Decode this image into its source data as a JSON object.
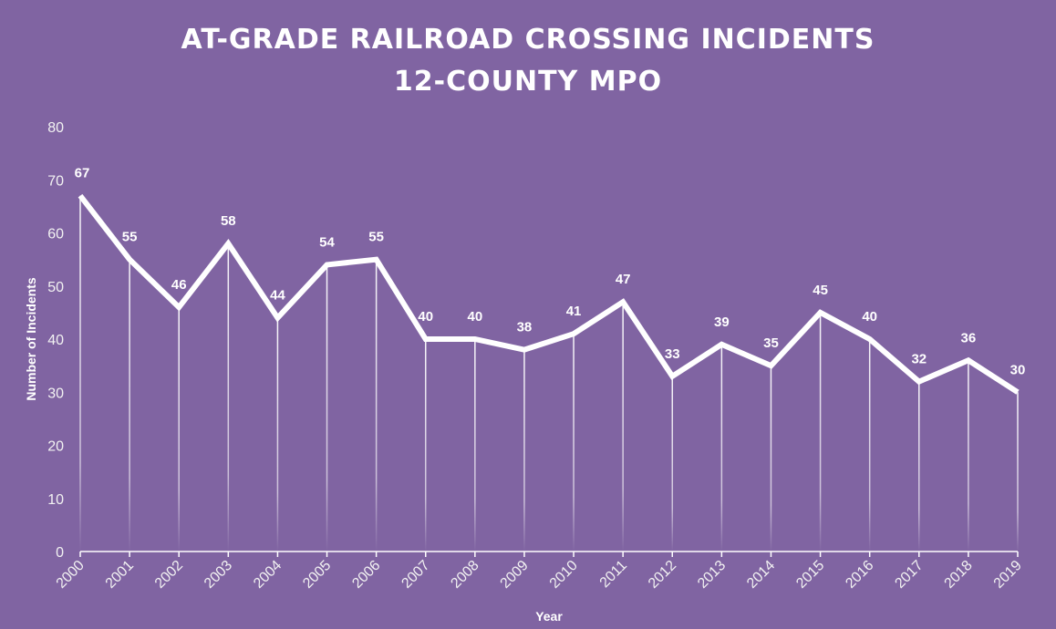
{
  "chart_data": {
    "type": "line",
    "title": [
      "AT-GRADE RAILROAD CROSSING INCIDENTS",
      "12-COUNTY MPO"
    ],
    "xlabel": "Year",
    "ylabel": "Number of Incidents",
    "ylim": [
      0,
      80
    ],
    "yticks": [
      0,
      10,
      20,
      30,
      40,
      50,
      60,
      70,
      80
    ],
    "categories": [
      "2000",
      "2001",
      "2002",
      "2003",
      "2004",
      "2005",
      "2006",
      "2007",
      "2008",
      "2009",
      "2010",
      "2011",
      "2012",
      "2013",
      "2014",
      "2015",
      "2016",
      "2017",
      "2018",
      "2019"
    ],
    "values": [
      67,
      55,
      46,
      58,
      44,
      54,
      55,
      40,
      40,
      38,
      41,
      47,
      33,
      39,
      35,
      45,
      40,
      32,
      36,
      30
    ],
    "data_labels": true,
    "drop_lines": true,
    "grid": false,
    "colors": {
      "background": "#8064a2",
      "line": "#ffffff"
    }
  }
}
